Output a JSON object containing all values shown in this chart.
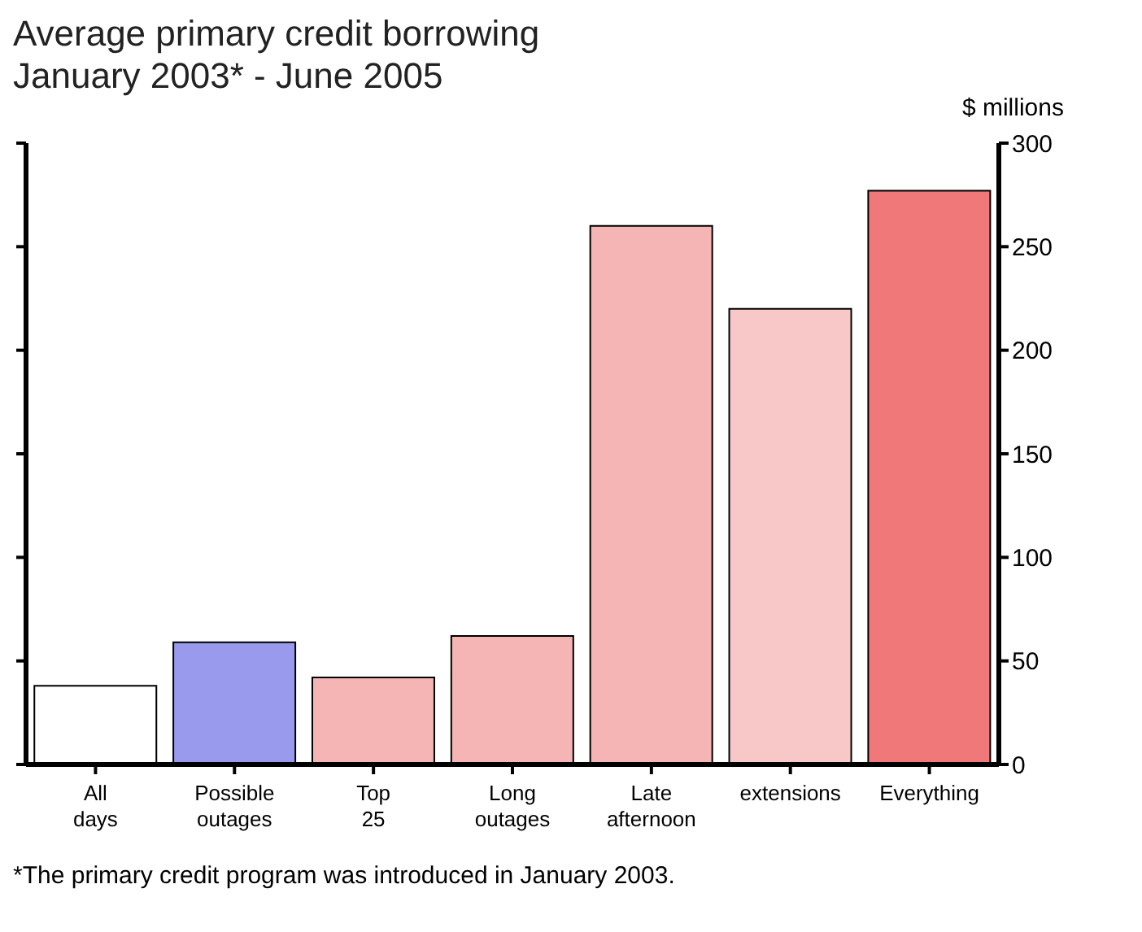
{
  "chart_data": {
    "type": "bar",
    "title": "Average primary credit borrowing",
    "subtitle": "January 2003* - June 2005",
    "ylabel": "$ millions",
    "categories": [
      "All days",
      "Possible outages",
      "Top 25",
      "Long outages",
      "Late afternoon",
      "extensions",
      "Everything"
    ],
    "values": [
      38,
      59,
      42,
      62,
      260,
      220,
      277
    ],
    "colors": [
      "#ffffff",
      "#9999ee",
      "#f5b5b5",
      "#f5b5b5",
      "#f5b5b5",
      "#f8c8c8",
      "#f07878"
    ],
    "ylim": [
      0,
      300
    ],
    "yticks": [
      0,
      50,
      100,
      150,
      200,
      250,
      300
    ],
    "annotations": [
      "*The primary credit program was introduced in January 2003."
    ]
  }
}
